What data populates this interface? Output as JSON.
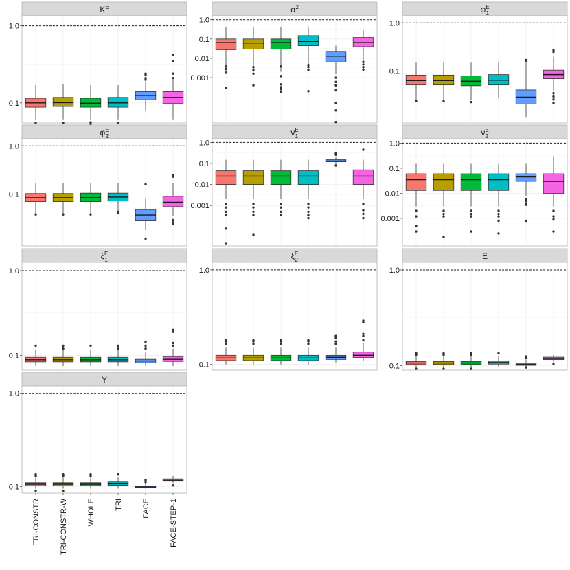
{
  "chart_data": {
    "type": "boxplot",
    "scale": "log10",
    "reference_line": 1.0,
    "categories": [
      "TRI-CONSTR",
      "TRI-CONSTR-W",
      "WHOLE",
      "TRI",
      "FACE",
      "FACE-STEP-1"
    ],
    "colors": [
      "#F8766D",
      "#B79F00",
      "#00BA38",
      "#00BFC4",
      "#619CFF",
      "#F564E3"
    ],
    "panels": [
      {
        "name": "K",
        "sup": "E",
        "sub": "",
        "ticks": [
          {
            "v": 1.0,
            "label": "1.0"
          },
          {
            "v": 0.1,
            "label": "0.1"
          }
        ],
        "ylim": [
          0.055,
          1.35
        ],
        "boxes": [
          {
            "whislo": 0.06,
            "q1": 0.088,
            "med": 0.1,
            "q3": 0.115,
            "whishi": 0.17,
            "fliers": [
              0.055
            ]
          },
          {
            "whislo": 0.06,
            "q1": 0.09,
            "med": 0.101,
            "q3": 0.118,
            "whishi": 0.175,
            "fliers": [
              0.055
            ]
          },
          {
            "whislo": 0.06,
            "q1": 0.088,
            "med": 0.099,
            "q3": 0.115,
            "whishi": 0.17,
            "fliers": [
              0.056,
              0.053
            ]
          },
          {
            "whislo": 0.06,
            "q1": 0.088,
            "med": 0.1,
            "q3": 0.118,
            "whishi": 0.17,
            "fliers": [
              0.055
            ]
          },
          {
            "whislo": 0.08,
            "q1": 0.11,
            "med": 0.125,
            "q3": 0.14,
            "whishi": 0.19,
            "fliers": [
              0.2,
              0.21,
              0.23,
              0.24
            ]
          },
          {
            "whislo": 0.06,
            "q1": 0.098,
            "med": 0.118,
            "q3": 0.14,
            "whishi": 0.2,
            "fliers": [
              0.21,
              0.24,
              0.35,
              0.42
            ]
          }
        ]
      },
      {
        "name": "σ",
        "sup": "2",
        "sub": "",
        "ticks": [
          {
            "v": 1.0,
            "label": "1.0"
          },
          {
            "v": 0.1,
            "label": "0.1"
          },
          {
            "v": 0.01,
            "label": "0.01"
          },
          {
            "v": 0.001,
            "label": "0.001"
          }
        ],
        "ylim": [
          4.5e-06,
          1.6
        ],
        "boxes": [
          {
            "whislo": 0.002,
            "q1": 0.028,
            "med": 0.065,
            "q3": 0.1,
            "whishi": 0.4,
            "fliers": [
              0.0038,
              0.0028,
              0.0018,
              0.0003
            ]
          },
          {
            "whislo": 0.002,
            "q1": 0.03,
            "med": 0.062,
            "q3": 0.1,
            "whishi": 0.4,
            "fliers": [
              0.0035,
              0.0025,
              0.0016,
              0.0004
            ]
          },
          {
            "whislo": 0.002,
            "q1": 0.03,
            "med": 0.065,
            "q3": 0.1,
            "whishi": 0.4,
            "fliers": [
              0.0038,
              0.0012,
              0.00045,
              0.00032,
              0.00025,
              0.00018
            ]
          },
          {
            "whislo": 0.004,
            "q1": 0.045,
            "med": 0.075,
            "q3": 0.15,
            "whishi": 0.4,
            "fliers": [
              0.0045,
              0.0035,
              0.0025,
              0.0002
            ]
          },
          {
            "whislo": 0.0015,
            "q1": 0.0065,
            "med": 0.013,
            "q3": 0.023,
            "whishi": 0.045,
            "fliers": [
              0.001,
              0.0006,
              0.0004,
              0.00022,
              5e-05,
              2e-05,
              5e-06
            ]
          },
          {
            "whislo": 0.008,
            "q1": 0.04,
            "med": 0.065,
            "q3": 0.12,
            "whishi": 0.28,
            "fliers": [
              0.0065,
              0.0048,
              0.0035,
              0.0026
            ]
          }
        ]
      },
      {
        "name": "φ",
        "sup": "E",
        "sub": "1",
        "ticks": [
          {
            "v": 1.0,
            "label": "1.0"
          },
          {
            "v": 0.1,
            "label": "0.1"
          }
        ],
        "ylim": [
          0.0085,
          1.4
        ],
        "boxes": [
          {
            "whislo": 0.025,
            "q1": 0.052,
            "med": 0.064,
            "q3": 0.083,
            "whishi": 0.15,
            "fliers": [
              0.024
            ]
          },
          {
            "whislo": 0.025,
            "q1": 0.052,
            "med": 0.064,
            "q3": 0.083,
            "whishi": 0.15,
            "fliers": [
              0.024
            ]
          },
          {
            "whislo": 0.025,
            "q1": 0.05,
            "med": 0.062,
            "q3": 0.08,
            "whishi": 0.15,
            "fliers": [
              0.023
            ]
          },
          {
            "whislo": 0.028,
            "q1": 0.052,
            "med": 0.065,
            "q3": 0.085,
            "whishi": 0.15,
            "fliers": []
          },
          {
            "whislo": 0.011,
            "q1": 0.021,
            "med": 0.029,
            "q3": 0.041,
            "whishi": 0.15,
            "fliers": [
              0.16,
              0.17
            ]
          },
          {
            "whislo": 0.04,
            "q1": 0.07,
            "med": 0.085,
            "q3": 0.105,
            "whishi": 0.2,
            "fliers": [
              0.035,
              0.03,
              0.026,
              0.022,
              0.25,
              0.27
            ]
          }
        ]
      },
      {
        "name": "φ",
        "sup": "E",
        "sub": "2",
        "ticks": [
          {
            "v": 1.0,
            "label": "1.0"
          },
          {
            "v": 0.1,
            "label": "0.1"
          }
        ],
        "ylim": [
          0.0085,
          1.4
        ],
        "boxes": [
          {
            "whislo": 0.04,
            "q1": 0.07,
            "med": 0.084,
            "q3": 0.103,
            "whishi": 0.17,
            "fliers": [
              0.038
            ]
          },
          {
            "whislo": 0.04,
            "q1": 0.07,
            "med": 0.084,
            "q3": 0.103,
            "whishi": 0.17,
            "fliers": [
              0.038
            ]
          },
          {
            "whislo": 0.04,
            "q1": 0.07,
            "med": 0.084,
            "q3": 0.105,
            "whishi": 0.17,
            "fliers": [
              0.038
            ]
          },
          {
            "whislo": 0.045,
            "q1": 0.072,
            "med": 0.087,
            "q3": 0.105,
            "whishi": 0.17,
            "fliers": [
              0.043,
              0.041
            ]
          },
          {
            "whislo": 0.018,
            "q1": 0.028,
            "med": 0.037,
            "q3": 0.048,
            "whishi": 0.08,
            "fliers": [
              0.012,
              0.16
            ]
          },
          {
            "whislo": 0.035,
            "q1": 0.055,
            "med": 0.068,
            "q3": 0.09,
            "whishi": 0.17,
            "fliers": [
              0.029,
              0.026,
              0.024,
              0.23,
              0.25
            ]
          }
        ]
      },
      {
        "name": "ν",
        "sup": "E",
        "sub": "1",
        "ticks": [
          {
            "v": 1.0,
            "label": "1.0"
          },
          {
            "v": 0.1,
            "label": "0.1"
          },
          {
            "v": 0.01,
            "label": "0.01"
          },
          {
            "v": 0.001,
            "label": "0.001"
          }
        ],
        "ylim": [
          1.2e-05,
          1.5
        ],
        "boxes": [
          {
            "whislo": 0.002,
            "q1": 0.01,
            "med": 0.025,
            "q3": 0.045,
            "whishi": 0.15,
            "fliers": [
              0.0012,
              0.0008,
              0.0005,
              0.00035,
              8e-05,
              1.5e-05
            ]
          },
          {
            "whislo": 0.002,
            "q1": 0.01,
            "med": 0.025,
            "q3": 0.045,
            "whishi": 0.15,
            "fliers": [
              0.0012,
              0.0008,
              0.0005,
              0.00035,
              4e-05
            ]
          },
          {
            "whislo": 0.002,
            "q1": 0.01,
            "med": 0.025,
            "q3": 0.045,
            "whishi": 0.15,
            "fliers": [
              0.0012,
              0.0008,
              0.0005,
              0.00035
            ]
          },
          {
            "whislo": 0.002,
            "q1": 0.01,
            "med": 0.025,
            "q3": 0.045,
            "whishi": 0.15,
            "fliers": [
              0.0012,
              0.0008,
              0.0005,
              0.00035,
              0.00025
            ]
          },
          {
            "whislo": 0.09,
            "q1": 0.12,
            "med": 0.13,
            "q3": 0.15,
            "whishi": 0.2,
            "fliers": [
              0.08,
              0.3,
              0.26
            ]
          },
          {
            "whislo": 0.002,
            "q1": 0.01,
            "med": 0.025,
            "q3": 0.05,
            "whishi": 0.15,
            "fliers": [
              0.0012,
              0.0006,
              0.0004,
              0.00025,
              0.45
            ]
          }
        ]
      },
      {
        "name": "ν",
        "sup": "E",
        "sub": "2",
        "ticks": [
          {
            "v": 1.0,
            "label": "1.0"
          },
          {
            "v": 0.1,
            "label": "0.1"
          },
          {
            "v": 0.01,
            "label": "0.01"
          },
          {
            "v": 0.001,
            "label": "0.001"
          }
        ],
        "ylim": [
          8e-05,
          1.5
        ],
        "boxes": [
          {
            "whislo": 0.003,
            "q1": 0.013,
            "med": 0.035,
            "q3": 0.06,
            "whishi": 0.15,
            "fliers": [
              0.002,
              0.0012,
              0.0005,
              0.0003
            ]
          },
          {
            "whislo": 0.003,
            "q1": 0.013,
            "med": 0.035,
            "q3": 0.06,
            "whishi": 0.15,
            "fliers": [
              0.002,
              0.0015,
              0.0012,
              0.00018
            ]
          },
          {
            "whislo": 0.003,
            "q1": 0.013,
            "med": 0.035,
            "q3": 0.06,
            "whishi": 0.15,
            "fliers": [
              0.002,
              0.0015,
              0.0012,
              0.0003
            ]
          },
          {
            "whislo": 0.003,
            "q1": 0.013,
            "med": 0.035,
            "q3": 0.06,
            "whishi": 0.15,
            "fliers": [
              0.002,
              0.0015,
              0.0012,
              0.0008,
              0.00025
            ]
          },
          {
            "whislo": 0.008,
            "q1": 0.03,
            "med": 0.045,
            "q3": 0.06,
            "whishi": 0.15,
            "fliers": [
              0.006,
              0.005,
              0.004,
              0.0035,
              0.0008
            ]
          },
          {
            "whislo": 0.003,
            "q1": 0.01,
            "med": 0.03,
            "q3": 0.06,
            "whishi": 0.3,
            "fliers": [
              0.002,
              0.0012,
              0.0009,
              0.0003
            ]
          }
        ]
      },
      {
        "name": "ξ",
        "sup": "E",
        "sub": "1",
        "ticks": [
          {
            "v": 1.0,
            "label": "1.0"
          },
          {
            "v": 0.1,
            "label": "0.1"
          }
        ],
        "ylim": [
          0.067,
          1.25
        ],
        "boxes": [
          {
            "whislo": 0.075,
            "q1": 0.084,
            "med": 0.089,
            "q3": 0.095,
            "whishi": 0.115,
            "fliers": [
              0.13
            ]
          },
          {
            "whislo": 0.075,
            "q1": 0.084,
            "med": 0.089,
            "q3": 0.095,
            "whishi": 0.115,
            "fliers": [
              0.12,
              0.13
            ]
          },
          {
            "whislo": 0.075,
            "q1": 0.084,
            "med": 0.089,
            "q3": 0.095,
            "whishi": 0.115,
            "fliers": [
              0.13
            ]
          },
          {
            "whislo": 0.075,
            "q1": 0.084,
            "med": 0.089,
            "q3": 0.095,
            "whishi": 0.115,
            "fliers": [
              0.12,
              0.13
            ]
          },
          {
            "whislo": 0.075,
            "q1": 0.082,
            "med": 0.086,
            "q3": 0.09,
            "whishi": 0.11,
            "fliers": [
              0.12,
              0.13,
              0.145
            ]
          },
          {
            "whislo": 0.075,
            "q1": 0.085,
            "med": 0.09,
            "q3": 0.097,
            "whishi": 0.12,
            "fliers": [
              0.13,
              0.14,
              0.19,
              0.2
            ]
          }
        ]
      },
      {
        "name": "ξ",
        "sup": "E",
        "sub": "2",
        "ticks": [
          {
            "v": 1.0,
            "label": "1.0"
          },
          {
            "v": 0.1,
            "label": "0.1"
          }
        ],
        "ylim": [
          0.087,
          1.2
        ],
        "boxes": [
          {
            "whislo": 0.1,
            "q1": 0.11,
            "med": 0.117,
            "q3": 0.125,
            "whishi": 0.15,
            "fliers": [
              0.165,
              0.175,
              0.18
            ]
          },
          {
            "whislo": 0.1,
            "q1": 0.11,
            "med": 0.117,
            "q3": 0.125,
            "whishi": 0.15,
            "fliers": [
              0.165,
              0.175,
              0.18
            ]
          },
          {
            "whislo": 0.1,
            "q1": 0.11,
            "med": 0.117,
            "q3": 0.125,
            "whishi": 0.15,
            "fliers": [
              0.165,
              0.175,
              0.18
            ]
          },
          {
            "whislo": 0.1,
            "q1": 0.11,
            "med": 0.117,
            "q3": 0.125,
            "whishi": 0.15,
            "fliers": [
              0.165,
              0.175,
              0.18
            ]
          },
          {
            "whislo": 0.105,
            "q1": 0.113,
            "med": 0.119,
            "q3": 0.125,
            "whishi": 0.15,
            "fliers": [
              0.165,
              0.175,
              0.19,
              0.2
            ]
          },
          {
            "whislo": 0.11,
            "q1": 0.118,
            "med": 0.125,
            "q3": 0.135,
            "whishi": 0.17,
            "fliers": [
              0.18,
              0.2,
              0.21,
              0.28,
              0.29
            ]
          }
        ]
      },
      {
        "name": "E",
        "sup": "",
        "sub": "",
        "ticks": [
          {
            "v": 1.0,
            "label": "1.0"
          },
          {
            "v": 0.1,
            "label": "0.1"
          }
        ],
        "ylim": [
          0.09,
          1.2
        ],
        "boxes": [
          {
            "whislo": 0.095,
            "q1": 0.103,
            "med": 0.107,
            "q3": 0.111,
            "whishi": 0.125,
            "fliers": [
              0.093,
              0.13,
              0.135
            ]
          },
          {
            "whislo": 0.095,
            "q1": 0.103,
            "med": 0.107,
            "q3": 0.111,
            "whishi": 0.125,
            "fliers": [
              0.093,
              0.13,
              0.135
            ]
          },
          {
            "whislo": 0.095,
            "q1": 0.103,
            "med": 0.107,
            "q3": 0.111,
            "whishi": 0.125,
            "fliers": [
              0.093,
              0.13,
              0.135
            ]
          },
          {
            "whislo": 0.097,
            "q1": 0.104,
            "med": 0.108,
            "q3": 0.112,
            "whishi": 0.125,
            "fliers": [
              0.135
            ]
          },
          {
            "whislo": 0.097,
            "q1": 0.101,
            "med": 0.103,
            "q3": 0.106,
            "whishi": 0.115,
            "fliers": [
              0.096,
              0.12,
              0.125
            ]
          },
          {
            "whislo": 0.11,
            "q1": 0.116,
            "med": 0.119,
            "q3": 0.123,
            "whishi": 0.13,
            "fliers": [
              0.105
            ]
          }
        ]
      },
      {
        "name": "Y",
        "sup": "",
        "sub": "",
        "ticks": [
          {
            "v": 1.0,
            "label": "1.0"
          },
          {
            "v": 0.1,
            "label": "0.1"
          }
        ],
        "ylim": [
          0.085,
          1.2
        ],
        "boxes": [
          {
            "whislo": 0.095,
            "q1": 0.102,
            "med": 0.106,
            "q3": 0.11,
            "whishi": 0.125,
            "fliers": [
              0.09,
              0.13,
              0.135
            ]
          },
          {
            "whislo": 0.095,
            "q1": 0.102,
            "med": 0.106,
            "q3": 0.11,
            "whishi": 0.125,
            "fliers": [
              0.09,
              0.13,
              0.135
            ]
          },
          {
            "whislo": 0.095,
            "q1": 0.102,
            "med": 0.106,
            "q3": 0.11,
            "whishi": 0.125,
            "fliers": [
              0.13,
              0.135
            ]
          },
          {
            "whislo": 0.095,
            "q1": 0.103,
            "med": 0.107,
            "q3": 0.112,
            "whishi": 0.125,
            "fliers": [
              0.135
            ]
          },
          {
            "whislo": 0.095,
            "q1": 0.097,
            "med": 0.099,
            "q3": 0.101,
            "whishi": 0.108,
            "fliers": [
              0.11,
              0.115,
              0.118
            ]
          },
          {
            "whislo": 0.108,
            "q1": 0.114,
            "med": 0.117,
            "q3": 0.121,
            "whishi": 0.13,
            "fliers": [
              0.103
            ]
          }
        ]
      }
    ]
  }
}
